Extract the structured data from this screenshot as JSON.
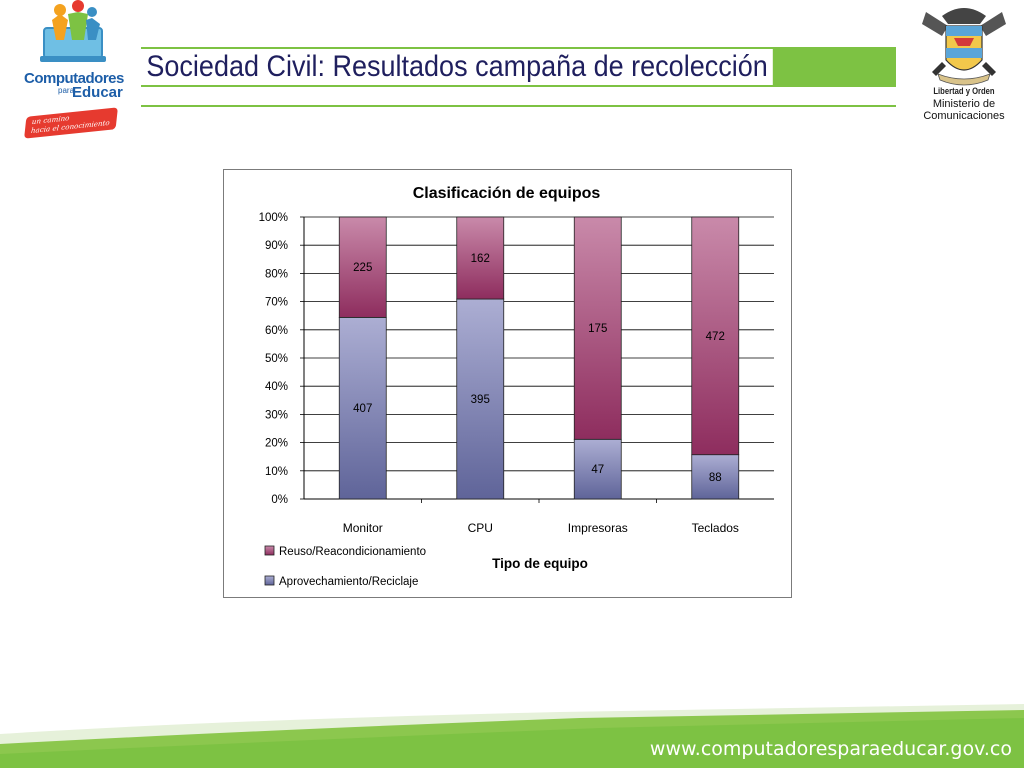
{
  "header": {
    "title": "Sociedad Civil: Resultados campaña de recolección",
    "logo_left_line1": "Computadores",
    "logo_left_para": "para",
    "logo_left_line2": "Educar",
    "logo_left_tagline1": "un camino",
    "logo_left_tagline2": "hacia el conocimiento",
    "logo_right_motto": "Libertad y Orden",
    "ministry_line1": "Ministerio de",
    "ministry_line2": "Comunicaciones"
  },
  "footer": {
    "url": "www.computadoresparaeducar.gov.co"
  },
  "colors": {
    "accent_green": "#7dc243",
    "title_text": "#1f1f5e",
    "series_reuso": "#9c3d6f",
    "series_aprovechamiento": "#8a8fc0"
  },
  "chart_data": {
    "type": "bar",
    "stacked": true,
    "normalized": true,
    "title": "Clasificación de equipos",
    "xlabel": "Tipo de equipo",
    "ylabel": "",
    "categories": [
      "Monitor",
      "CPU",
      "Impresoras",
      "Teclados"
    ],
    "series": [
      {
        "name": "Aprovechamiento/Reciclaje",
        "values": [
          407,
          395,
          47,
          88
        ]
      },
      {
        "name": "Reuso/Reacondicionamiento",
        "values": [
          225,
          162,
          175,
          472
        ]
      }
    ],
    "yticks": [
      "0%",
      "10%",
      "20%",
      "30%",
      "40%",
      "50%",
      "60%",
      "70%",
      "80%",
      "90%",
      "100%"
    ],
    "ylim": [
      0,
      100
    ],
    "grid": true,
    "legend_position": "bottom-left"
  }
}
